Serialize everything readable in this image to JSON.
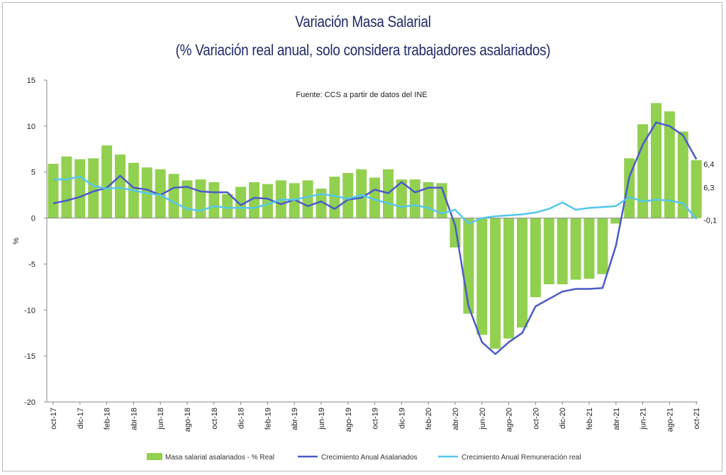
{
  "chart_data": {
    "type": "bar",
    "title": "Variación Masa Salarial",
    "subtitle": "(% Variación real anual, solo considera trabajadores asalariados)",
    "source": "Fuente: CCS a partir de datos del INE",
    "ylabel": "%",
    "ylim": [
      -20,
      15
    ],
    "yticks": [
      15,
      10,
      5,
      0,
      -5,
      -10,
      -15,
      -20
    ],
    "grid": false,
    "legend_position": "bottom",
    "categories": [
      "oct-17",
      "nov-17",
      "dic-17",
      "ene-18",
      "feb-18",
      "mar-18",
      "abr-18",
      "may-18",
      "jun-18",
      "jul-18",
      "ago-18",
      "sep-18",
      "oct-18",
      "nov-18",
      "dic-18",
      "ene-19",
      "feb-19",
      "mar-19",
      "abr-19",
      "may-19",
      "jun-19",
      "jul-19",
      "ago-19",
      "sep-19",
      "oct-19",
      "nov-19",
      "dic-19",
      "ene-20",
      "feb-20",
      "mar-20",
      "abr-20",
      "may-20",
      "jun-20",
      "jul-20",
      "ago-20",
      "sep-20",
      "oct-20",
      "nov-20",
      "dic-20",
      "ene-21",
      "feb-21",
      "mar-21",
      "abr-21",
      "may-21",
      "jun-21",
      "jul-21",
      "ago-21",
      "sep-21",
      "oct-21"
    ],
    "tick_labels": [
      "oct-17",
      "dic-17",
      "feb-18",
      "abr-18",
      "jun-18",
      "ago-18",
      "oct-18",
      "dic-18",
      "feb-19",
      "abr-19",
      "jun-19",
      "ago-19",
      "oct-19",
      "dic-19",
      "feb-20",
      "abr-20",
      "jun-20",
      "ago-20",
      "oct-20",
      "dic-20",
      "feb-21",
      "abr-21",
      "jun-21",
      "ago-21",
      "oct-21"
    ],
    "series": [
      {
        "name": "Masa salarial asalariados - % Real",
        "type": "bar",
        "color": "#92d050",
        "values": [
          5.9,
          6.7,
          6.4,
          6.5,
          7.9,
          6.9,
          6.0,
          5.5,
          5.3,
          4.8,
          4.1,
          4.2,
          3.9,
          2.6,
          3.4,
          3.9,
          3.7,
          4.1,
          3.8,
          4.1,
          3.2,
          4.5,
          4.9,
          5.3,
          4.4,
          5.3,
          4.2,
          4.2,
          3.9,
          3.8,
          -3.2,
          -10.4,
          -12.7,
          -14.2,
          -13.1,
          -11.9,
          -8.6,
          -7.2,
          -7.2,
          -6.7,
          -6.6,
          -6.1,
          -0.6,
          6.5,
          10.2,
          12.5,
          11.6,
          9.4,
          6.3
        ]
      },
      {
        "name": "Crecimiento Anual Asalariados",
        "type": "line",
        "color": "#4a5bc8",
        "values": [
          1.6,
          1.9,
          2.3,
          2.9,
          3.3,
          4.6,
          3.3,
          3.1,
          2.5,
          3.3,
          3.4,
          2.9,
          2.8,
          2.8,
          1.4,
          2.2,
          2.1,
          1.5,
          2.0,
          1.3,
          1.8,
          1.0,
          2.0,
          2.2,
          3.1,
          2.7,
          3.9,
          2.8,
          3.3,
          3.3,
          -0.8,
          -9.6,
          -13.5,
          -14.8,
          -13.5,
          -12.5,
          -9.6,
          -8.8,
          -8.0,
          -7.7,
          -7.7,
          -7.6,
          -3.0,
          4.5,
          8.0,
          10.4,
          10.0,
          9.0,
          6.4
        ]
      },
      {
        "name": "Crecimiento Anual Remuneración real",
        "type": "line",
        "color": "#56c6ee",
        "values": [
          4.2,
          4.2,
          4.5,
          3.5,
          3.2,
          3.3,
          3.0,
          2.7,
          2.5,
          1.7,
          1.0,
          0.8,
          1.3,
          1.1,
          1.1,
          1.1,
          1.5,
          2.0,
          2.0,
          2.3,
          2.6,
          2.4,
          2.1,
          2.5,
          2.0,
          1.6,
          1.2,
          1.4,
          1.1,
          0.5,
          0.9,
          -0.6,
          0.0,
          0.2,
          0.3,
          0.4,
          0.6,
          1.0,
          1.7,
          0.9,
          1.1,
          1.2,
          1.3,
          2.3,
          1.8,
          2.0,
          1.9,
          1.6,
          -0.1
        ]
      }
    ],
    "end_labels": [
      {
        "series": 1,
        "text": "6,4"
      },
      {
        "series": 0,
        "text": "6,3"
      },
      {
        "series": 2,
        "text": "-0,1"
      }
    ]
  }
}
